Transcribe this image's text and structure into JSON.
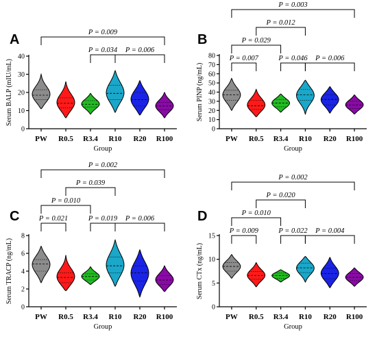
{
  "colors": {
    "PW": "#8c8c8c",
    "R0.5": "#ff1a1a",
    "R3.4": "#22bb22",
    "R10": "#1aa7c9",
    "R20": "#1a24e6",
    "R100": "#8a0aa6"
  },
  "chart_data": [
    {
      "type": "violin",
      "panel": "A",
      "title": "",
      "xlabel": "Group",
      "ylabel": "Serum BALP (mIU/mL)",
      "categories": [
        "PW",
        "R0.5",
        "R3.4",
        "R10",
        "R20",
        "R100"
      ],
      "ylim": [
        0,
        40
      ],
      "yticks": [
        0,
        10,
        20,
        30,
        40
      ],
      "series": [
        {
          "group": "PW",
          "min": 11,
          "q1": 16,
          "median": 18.5,
          "q3": 21.5,
          "max": 30,
          "mode": 19
        },
        {
          "group": "R0.5",
          "min": 6,
          "q1": 11.5,
          "median": 14,
          "q3": 17,
          "max": 26,
          "mode": 13
        },
        {
          "group": "R3.4",
          "min": 8,
          "q1": 12,
          "median": 13.5,
          "q3": 15.5,
          "max": 19.5,
          "mode": 14
        },
        {
          "group": "R10",
          "min": 9,
          "q1": 16,
          "median": 19.5,
          "q3": 24,
          "max": 32,
          "mode": 20
        },
        {
          "group": "R20",
          "min": 7.5,
          "q1": 12.5,
          "median": 16,
          "q3": 20,
          "max": 26.5,
          "mode": 16
        },
        {
          "group": "R100",
          "min": 6,
          "q1": 10.5,
          "median": 12.5,
          "q3": 14.5,
          "max": 20,
          "mode": 13
        }
      ],
      "comparisons": [
        {
          "from": "PW",
          "to": "R100",
          "label": "P = 0.009"
        },
        {
          "from": "R3.4",
          "to": "R10",
          "label": "P = 0.034"
        },
        {
          "from": "R10",
          "to": "R100",
          "label": "P = 0.006"
        }
      ]
    },
    {
      "type": "violin",
      "panel": "B",
      "title": "",
      "xlabel": "Group",
      "ylabel": "Serum PINP (ng/mL)",
      "categories": [
        "PW",
        "R0.5",
        "R3.4",
        "R10",
        "R20",
        "R100"
      ],
      "ylim": [
        0,
        80
      ],
      "yticks": [
        0,
        10,
        20,
        30,
        40,
        50,
        60,
        70,
        80
      ],
      "series": [
        {
          "group": "PW",
          "min": 20,
          "q1": 31,
          "median": 37,
          "q3": 42,
          "max": 55,
          "mode": 37
        },
        {
          "group": "R0.5",
          "min": 13,
          "q1": 21,
          "median": 25,
          "q3": 31,
          "max": 43,
          "mode": 24
        },
        {
          "group": "R3.4",
          "min": 18,
          "q1": 24,
          "median": 28,
          "q3": 32,
          "max": 38,
          "mode": 28
        },
        {
          "group": "R10",
          "min": 16,
          "q1": 31,
          "median": 37,
          "q3": 43,
          "max": 53,
          "mode": 38
        },
        {
          "group": "R20",
          "min": 17,
          "q1": 26,
          "median": 32,
          "q3": 37,
          "max": 46,
          "mode": 32
        },
        {
          "group": "R100",
          "min": 16,
          "q1": 22,
          "median": 26,
          "q3": 30,
          "max": 37,
          "mode": 25
        }
      ],
      "comparisons": [
        {
          "from": "PW",
          "to": "R100",
          "label": "P = 0.003"
        },
        {
          "from": "R0.5",
          "to": "R10",
          "label": "P = 0.012"
        },
        {
          "from": "PW",
          "to": "R3.4",
          "label": "P = 0.029"
        },
        {
          "from": "PW",
          "to": "R0.5",
          "label": "P = 0.007"
        },
        {
          "from": "R3.4",
          "to": "R10",
          "label": "P = 0.046"
        },
        {
          "from": "R10",
          "to": "R100",
          "label": "P = 0.006"
        }
      ]
    },
    {
      "type": "violin",
      "panel": "C",
      "title": "",
      "xlabel": "Group",
      "ylabel": "Serum TRACP (ng/mL)",
      "categories": [
        "PW",
        "R0.5",
        "R3.4",
        "R10",
        "R20",
        "R100"
      ],
      "ylim": [
        0,
        8
      ],
      "yticks": [
        0,
        2,
        4,
        6,
        8
      ],
      "series": [
        {
          "group": "PW",
          "min": 2.7,
          "q1": 4.0,
          "median": 4.8,
          "q3": 5.3,
          "max": 6.8,
          "mode": 4.5
        },
        {
          "group": "R0.5",
          "min": 1.8,
          "q1": 2.7,
          "median": 3.3,
          "q3": 3.8,
          "max": 5.8,
          "mode": 3.1
        },
        {
          "group": "R3.4",
          "min": 2.5,
          "q1": 3.0,
          "median": 3.4,
          "q3": 3.7,
          "max": 4.5,
          "mode": 3.4
        },
        {
          "group": "R10",
          "min": 2.3,
          "q1": 3.8,
          "median": 4.6,
          "q3": 5.6,
          "max": 7.5,
          "mode": 4.5
        },
        {
          "group": "R20",
          "min": 1.1,
          "q1": 2.9,
          "median": 3.8,
          "q3": 4.6,
          "max": 6.4,
          "mode": 4.0
        },
        {
          "group": "R100",
          "min": 1.7,
          "q1": 2.5,
          "median": 3.0,
          "q3": 3.5,
          "max": 4.6,
          "mode": 3.0
        }
      ],
      "comparisons": [
        {
          "from": "PW",
          "to": "R100",
          "label": "P = 0.002"
        },
        {
          "from": "R0.5",
          "to": "R10",
          "label": "P = 0.039"
        },
        {
          "from": "PW",
          "to": "R3.4",
          "label": "P = 0.010"
        },
        {
          "from": "PW",
          "to": "R0.5",
          "label": "P = 0.021"
        },
        {
          "from": "R3.4",
          "to": "R10",
          "label": "P = 0.019"
        },
        {
          "from": "R10",
          "to": "R100",
          "label": "P = 0.006"
        }
      ]
    },
    {
      "type": "violin",
      "panel": "D",
      "title": "",
      "xlabel": "Group",
      "ylabel": "Serum CTx (ng/mL)",
      "categories": [
        "PW",
        "R0.5",
        "R3.4",
        "R10",
        "R20",
        "R100"
      ],
      "ylim": [
        0,
        15
      ],
      "yticks": [
        0,
        5,
        10,
        15
      ],
      "series": [
        {
          "group": "PW",
          "min": 6.0,
          "q1": 7.5,
          "median": 8.5,
          "q3": 9.3,
          "max": 11.0,
          "mode": 8.3
        },
        {
          "group": "R0.5",
          "min": 4.2,
          "q1": 5.8,
          "median": 6.6,
          "q3": 7.4,
          "max": 9.3,
          "mode": 6.3
        },
        {
          "group": "R3.4",
          "min": 5.2,
          "q1": 6.0,
          "median": 6.6,
          "q3": 7.1,
          "max": 7.8,
          "mode": 6.6
        },
        {
          "group": "R10",
          "min": 5.2,
          "q1": 7.2,
          "median": 8.2,
          "q3": 9.2,
          "max": 10.6,
          "mode": 8.2
        },
        {
          "group": "R20",
          "min": 4.0,
          "q1": 5.9,
          "median": 7.0,
          "q3": 8.1,
          "max": 10.4,
          "mode": 7.0
        },
        {
          "group": "R100",
          "min": 4.3,
          "q1": 5.5,
          "median": 6.2,
          "q3": 7.0,
          "max": 8.2,
          "mode": 6.2
        }
      ],
      "comparisons": [
        {
          "from": "PW",
          "to": "R100",
          "label": "P = 0.002"
        },
        {
          "from": "R0.5",
          "to": "R10",
          "label": "P = 0.020"
        },
        {
          "from": "PW",
          "to": "R3.4",
          "label": "P = 0.010"
        },
        {
          "from": "PW",
          "to": "R0.5",
          "label": "P = 0.009"
        },
        {
          "from": "R3.4",
          "to": "R10",
          "label": "P = 0.022"
        },
        {
          "from": "R10",
          "to": "R100",
          "label": "P = 0.004"
        }
      ]
    }
  ]
}
